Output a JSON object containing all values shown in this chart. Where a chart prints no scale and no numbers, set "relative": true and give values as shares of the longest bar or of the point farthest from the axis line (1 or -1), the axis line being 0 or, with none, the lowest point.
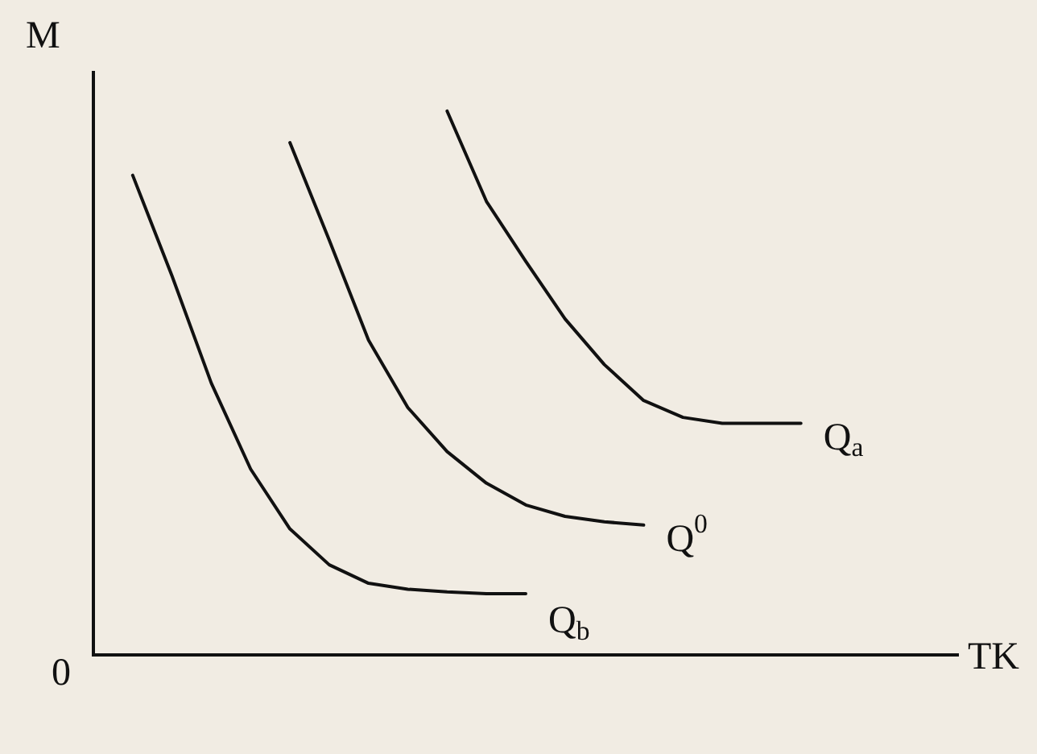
{
  "chart_data": {
    "type": "line",
    "relative": true,
    "xlabel": "TK",
    "ylabel": "M",
    "annotations": [
      "0"
    ],
    "legend": false,
    "grid": false,
    "marker": "none",
    "line_style": "solid",
    "categories": [
      null,
      null,
      null,
      null,
      null,
      null,
      null,
      null,
      null,
      null,
      null,
      null,
      null,
      null,
      null,
      null,
      null,
      null,
      null,
      null,
      null,
      null,
      null
    ],
    "series": [
      {
        "name": "Q$_{b}$",
        "color": "#111111",
        "values": [
          null,
          0.882,
          0.697,
          0.5,
          0.342,
          0.232,
          0.166,
          0.132,
          0.121,
          0.116,
          0.113,
          0.113,
          null,
          null,
          null,
          null,
          null,
          null,
          null,
          null,
          null,
          null,
          null
        ]
      },
      {
        "name": "Q$^{0}$",
        "color": "#111111",
        "values": [
          null,
          null,
          null,
          null,
          null,
          0.942,
          0.763,
          0.579,
          0.455,
          0.374,
          0.316,
          0.276,
          0.255,
          0.245,
          0.239,
          null,
          null,
          null,
          null,
          null,
          null,
          null,
          null
        ]
      },
      {
        "name": "Q$_{a}$",
        "color": "#111111",
        "values": [
          null,
          null,
          null,
          null,
          null,
          null,
          null,
          null,
          null,
          1,
          0.834,
          0.724,
          0.618,
          0.534,
          0.468,
          0.437,
          0.426,
          0.426,
          0.426,
          null,
          null,
          null,
          null
        ]
      }
    ]
  }
}
